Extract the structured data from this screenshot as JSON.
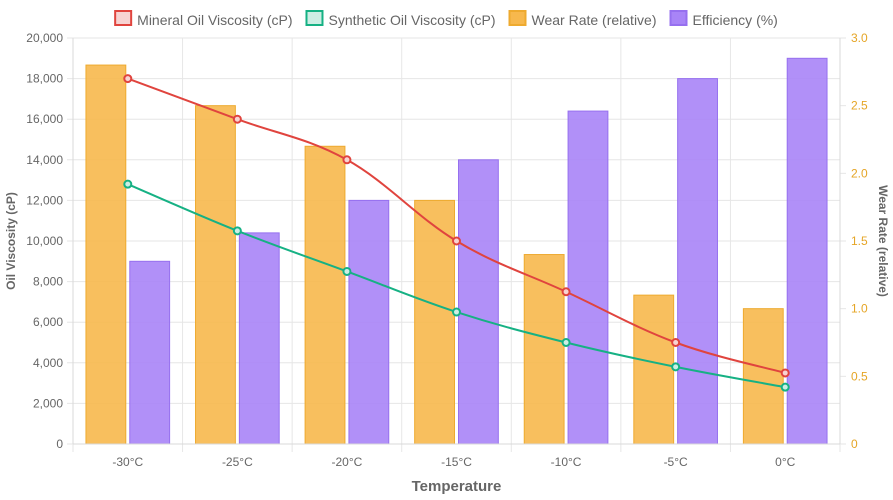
{
  "chart_data": {
    "type": "bar-line-combo",
    "categories": [
      "-30°C",
      "-25°C",
      "-20°C",
      "-15°C",
      "-10°C",
      "-5°C",
      "0°C"
    ],
    "xlabel": "Temperature",
    "ylabel_left": "Oil Viscosity (cP)",
    "ylabel_right": "Wear Rate (relative)",
    "ylim_left": [
      0,
      20000
    ],
    "ylim_right": [
      0,
      3
    ],
    "yticks_left": [
      "0",
      "2,000",
      "4,000",
      "6,000",
      "8,000",
      "10,000",
      "12,000",
      "14,000",
      "16,000",
      "18,000",
      "20,000"
    ],
    "yticks_right": [
      "0",
      "0.5",
      "1.0",
      "1.5",
      "2.0",
      "2.5",
      "3.0"
    ],
    "legend_position": "top",
    "grid": true,
    "series": [
      {
        "name": "Mineral Oil Viscosity (cP)",
        "kind": "line",
        "axis": "left",
        "color": "#e0443e",
        "fill": "#f7d3d2",
        "values": [
          18000,
          16000,
          14000,
          10000,
          7500,
          5000,
          3500
        ]
      },
      {
        "name": "Synthetic Oil Viscosity (cP)",
        "kind": "line",
        "axis": "left",
        "color": "#16b184",
        "fill": "#cdeee4",
        "values": [
          12800,
          10500,
          8500,
          6500,
          5000,
          3800,
          2800
        ]
      },
      {
        "name": "Wear Rate (relative)",
        "kind": "bar",
        "axis": "right",
        "color": "#f7b84d",
        "stroke": "#eeaa2f",
        "values": [
          2.8,
          2.5,
          2.2,
          1.8,
          1.4,
          1.1,
          1.0
        ]
      },
      {
        "name": "Efficiency (%)",
        "kind": "bar",
        "axis": "left",
        "color": "#a884f7",
        "stroke": "#9670ef",
        "values": [
          9000,
          10400,
          12000,
          14000,
          16400,
          18000,
          19000
        ]
      }
    ]
  }
}
